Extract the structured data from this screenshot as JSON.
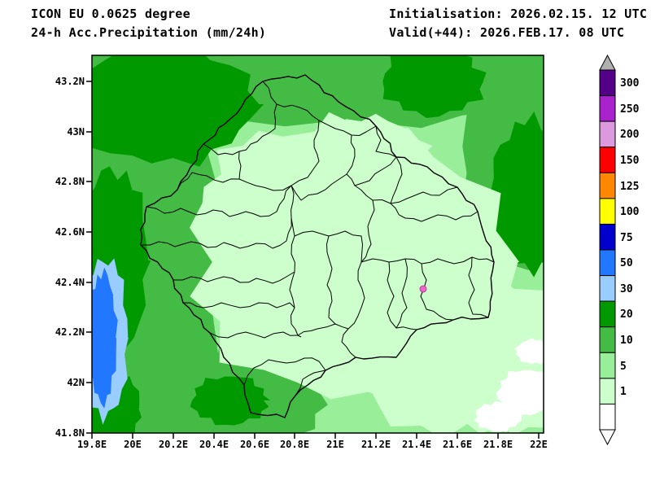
{
  "header": {
    "model": "ICON EU 0.0625 degree",
    "product": "24-h Acc.Precipitation (mm/24h)",
    "initialisation": "Initialisation: 2026.02.15. 12 UTC",
    "valid": "Valid(+44): 2026.FEB.17. 08 UTC"
  },
  "axes": {
    "y_ticks": [
      "43.2N",
      "43N",
      "42.8N",
      "42.6N",
      "42.4N",
      "42.2N",
      "42N",
      "41.8N"
    ],
    "x_ticks": [
      "19.8E",
      "20E",
      "20.2E",
      "20.4E",
      "20.6E",
      "20.8E",
      "21E",
      "21.2E",
      "21.4E",
      "21.6E",
      "21.8E",
      "22E"
    ]
  },
  "legend": {
    "labels": [
      "300",
      "250",
      "200",
      "150",
      "125",
      "100",
      "75",
      "50",
      "30",
      "20",
      "10",
      "5",
      "1"
    ],
    "colors": [
      "#550088",
      "#aa22cc",
      "#dd99dd",
      "#ff0000",
      "#ff8800",
      "#ffff00",
      "#0000cc",
      "#2277ff",
      "#99ccff",
      "#009900",
      "#44bb44",
      "#99ee99",
      "#ccffcc",
      "#ffffff"
    ],
    "overflow_color": "#b0b0b0",
    "underflow_color": "#ffffff"
  },
  "palette": {
    "white": "#ffffff",
    "g1": "#ccffcc",
    "g5": "#99ee99",
    "g10": "#44bb44",
    "g20": "#009900",
    "b30": "#99ccff",
    "b50": "#2277ff",
    "marker": "#ee66cc",
    "border": "#000000"
  },
  "chart_data": {
    "type": "heatmap",
    "title": "24-h Acc.Precipitation (mm/24h)",
    "units": "mm/24h",
    "x_axis_label_ticks": [
      "19.8E",
      "20E",
      "20.2E",
      "20.4E",
      "20.6E",
      "20.8E",
      "21E",
      "21.2E",
      "21.4E",
      "21.6E",
      "21.8E",
      "22E"
    ],
    "y_axis_label_ticks": [
      "41.8N",
      "42N",
      "42.2N",
      "42.4N",
      "42.6N",
      "42.8N",
      "43N",
      "43.2N"
    ],
    "x_range_deg_east": [
      19.8,
      22.0
    ],
    "y_range_deg_north": [
      41.8,
      43.2
    ],
    "scale_levels_mm": [
      1,
      5,
      10,
      20,
      30,
      50,
      75,
      100,
      125,
      150,
      200,
      250,
      300
    ],
    "scale_colors_low_to_high": [
      "#ffffff",
      "#ccffcc",
      "#99ee99",
      "#44bb44",
      "#009900",
      "#99ccff",
      "#2277ff",
      "#0000cc",
      "#ffff00",
      "#ff8800",
      "#ff0000",
      "#dd99dd",
      "#aa22cc",
      "#550088"
    ],
    "legend_position": "right",
    "grid": false
  }
}
